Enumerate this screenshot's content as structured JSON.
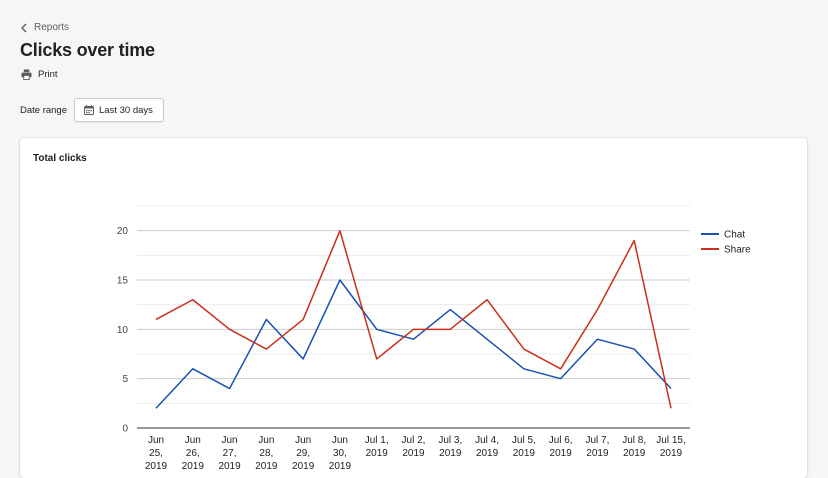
{
  "breadcrumb": {
    "label": "Reports"
  },
  "page": {
    "title": "Clicks over time"
  },
  "actions": {
    "print_label": "Print"
  },
  "filters": {
    "date_range_label": "Date range",
    "date_range_value": "Last 30 days"
  },
  "card": {
    "title": "Total clicks"
  },
  "colors": {
    "chat": "#1a4fb3",
    "share": "#c9301c"
  },
  "chart_data": {
    "type": "line",
    "categories": [
      [
        "Jun",
        "25,",
        "2019"
      ],
      [
        "Jun",
        "26,",
        "2019"
      ],
      [
        "Jun",
        "27,",
        "2019"
      ],
      [
        "Jun",
        "28,",
        "2019"
      ],
      [
        "Jun",
        "29,",
        "2019"
      ],
      [
        "Jun",
        "30,",
        "2019"
      ],
      [
        "Jul 1,",
        "2019"
      ],
      [
        "Jul 2,",
        "2019"
      ],
      [
        "Jul 3,",
        "2019"
      ],
      [
        "Jul 4,",
        "2019"
      ],
      [
        "Jul 5,",
        "2019"
      ],
      [
        "Jul 6,",
        "2019"
      ],
      [
        "Jul 7,",
        "2019"
      ],
      [
        "Jul 8,",
        "2019"
      ],
      [
        "Jul 15,",
        "2019"
      ]
    ],
    "series": [
      {
        "name": "Chat",
        "color": "#1a4fb3",
        "values": [
          2,
          6,
          4,
          11,
          7,
          15,
          10,
          9,
          12,
          9,
          6,
          5,
          9,
          8,
          4
        ]
      },
      {
        "name": "Share",
        "color": "#c9301c",
        "values": [
          11,
          13,
          10,
          8,
          11,
          20,
          7,
          10,
          10,
          13,
          8,
          6,
          12,
          19,
          2
        ]
      }
    ],
    "yticks": [
      0,
      5,
      10,
      15,
      20
    ],
    "ylim": [
      0,
      22.5
    ],
    "grid": true,
    "legend": "right"
  }
}
